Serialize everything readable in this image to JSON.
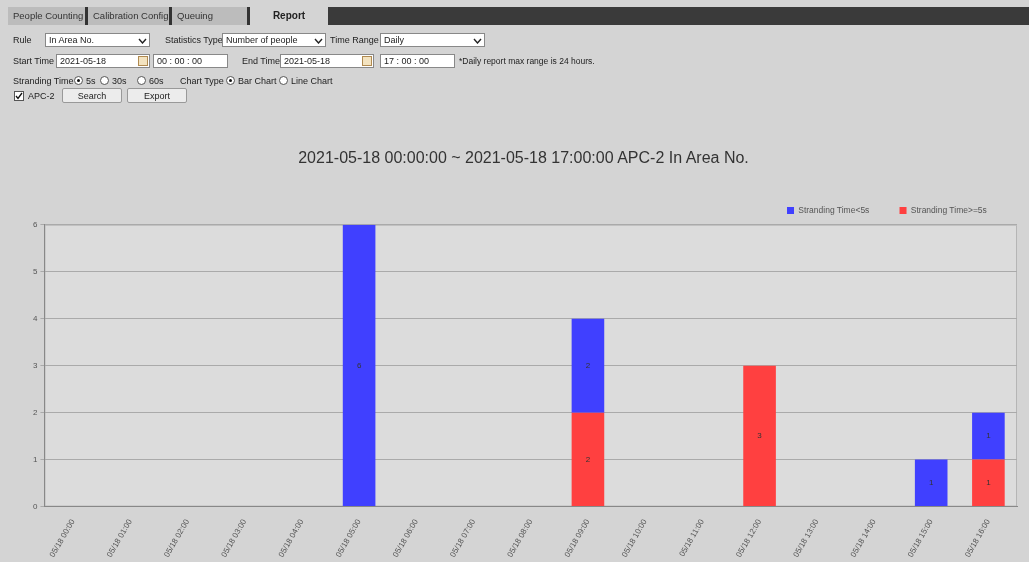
{
  "chart_data": {
    "type": "bar",
    "title": "2021-05-18 00:00:00 ~ 2021-05-18 17:00:00 APC-2 In Area No.",
    "categories": [
      "05/18 00:00",
      "05/18 01:00",
      "05/18 02:00",
      "05/18 03:00",
      "05/18 04:00",
      "05/18 05:00",
      "05/18 06:00",
      "05/18 07:00",
      "05/18 08:00",
      "05/18 09:00",
      "05/18 10:00",
      "05/18 11:00",
      "05/18 12:00",
      "05/18 13:00",
      "05/18 14:00",
      "05/18 15:00",
      "05/18 16:00"
    ],
    "series": [
      {
        "name": "Stranding Time>=5s",
        "color": "#ff4040",
        "values": [
          0,
          0,
          0,
          0,
          0,
          0,
          0,
          0,
          0,
          2,
          0,
          0,
          3,
          0,
          0,
          0,
          1
        ],
        "value_labels": [
          null,
          null,
          null,
          null,
          null,
          null,
          null,
          null,
          null,
          "2",
          null,
          null,
          "3",
          null,
          null,
          null,
          "1"
        ]
      },
      {
        "name": "Stranding Time<5s",
        "color": "#4040ff",
        "values": [
          0,
          0,
          0,
          0,
          0,
          6,
          0,
          0,
          0,
          2,
          0,
          0,
          0,
          0,
          0,
          1,
          1
        ],
        "value_labels": [
          null,
          null,
          null,
          null,
          null,
          "6",
          null,
          null,
          null,
          "2",
          null,
          null,
          null,
          null,
          null,
          "1",
          "1"
        ]
      }
    ],
    "stacked": true,
    "ylim": [
      0,
      6
    ],
    "yticks": [
      0,
      1,
      2,
      3,
      4,
      5,
      6
    ],
    "grid": "y",
    "legend": "top right",
    "annotations": [
      "People Counting",
      "Calibration Config",
      "Queuing",
      "Report",
      "Rule",
      "In Area No.",
      "Statistics Type",
      "Number of people",
      "Time Range",
      "Daily",
      "Start Time",
      "2021-05-18",
      "00 : 00 : 00",
      "End Time",
      "2021-05-18",
      "17 : 00 : 00",
      "*Daily report max range is 24 hours.",
      "Stranding Time",
      "5s",
      "30s",
      "60s",
      "Chart Type",
      "Bar Chart",
      "Line Chart",
      "APC-2",
      "Search",
      "Export"
    ]
  }
}
